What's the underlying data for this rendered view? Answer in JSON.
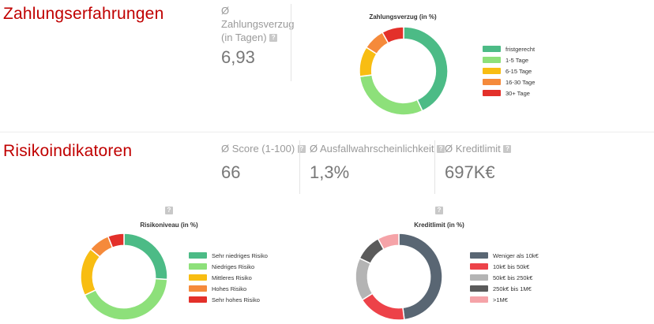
{
  "payment": {
    "title": "Zahlungserfahrungen",
    "metric_label": [
      "Ø",
      "Zahlungsverzug",
      "(in Tagen)"
    ],
    "metric_value": "6,93"
  },
  "risk": {
    "title": "Risikoindikatoren",
    "metrics": [
      {
        "label": "Ø Score (1-100)",
        "value": "66"
      },
      {
        "label": "Ø Ausfallwahrscheinlichkeit",
        "value": "1,3%"
      },
      {
        "label": "Ø Kreditlimit",
        "value": "697K€"
      }
    ]
  },
  "help_glyph": "?",
  "chart_data": [
    {
      "type": "pie",
      "donut": true,
      "title": "Zahlungsverzug (in %)",
      "categories": [
        "fristgerecht",
        "1-5 Tage",
        "6-15 Tage",
        "16-30 Tage",
        "30+ Tage"
      ],
      "values": [
        43,
        30,
        11,
        8,
        8
      ],
      "colors": [
        "#4cbb86",
        "#8de07a",
        "#f8bd12",
        "#f58a3b",
        "#e3302a"
      ],
      "legend": "right"
    },
    {
      "type": "pie",
      "donut": true,
      "title": "Risikoniveau (in %)",
      "categories": [
        "Sehr niedriges Risiko",
        "Niedriges Risiko",
        "Mittleres Risiko",
        "Hohes Risiko",
        "Sehr hohes Risiko"
      ],
      "values": [
        26,
        42,
        18,
        8,
        6
      ],
      "colors": [
        "#4cbb86",
        "#8de07a",
        "#f8bd12",
        "#f58a3b",
        "#e3302a"
      ],
      "legend": "right"
    },
    {
      "type": "pie",
      "donut": true,
      "title": "Kreditlimit (in %)",
      "categories": [
        "Weniger als 10k€",
        "10k€ bis 50k€",
        "50k€ bis 250k€",
        "250k€ bis 1M€",
        ">1M€"
      ],
      "values": [
        48,
        18,
        16,
        10,
        8
      ],
      "colors": [
        "#596673",
        "#ed4249",
        "#b4b4b4",
        "#5a5a5a",
        "#f5a3a8"
      ],
      "legend": "right"
    }
  ]
}
